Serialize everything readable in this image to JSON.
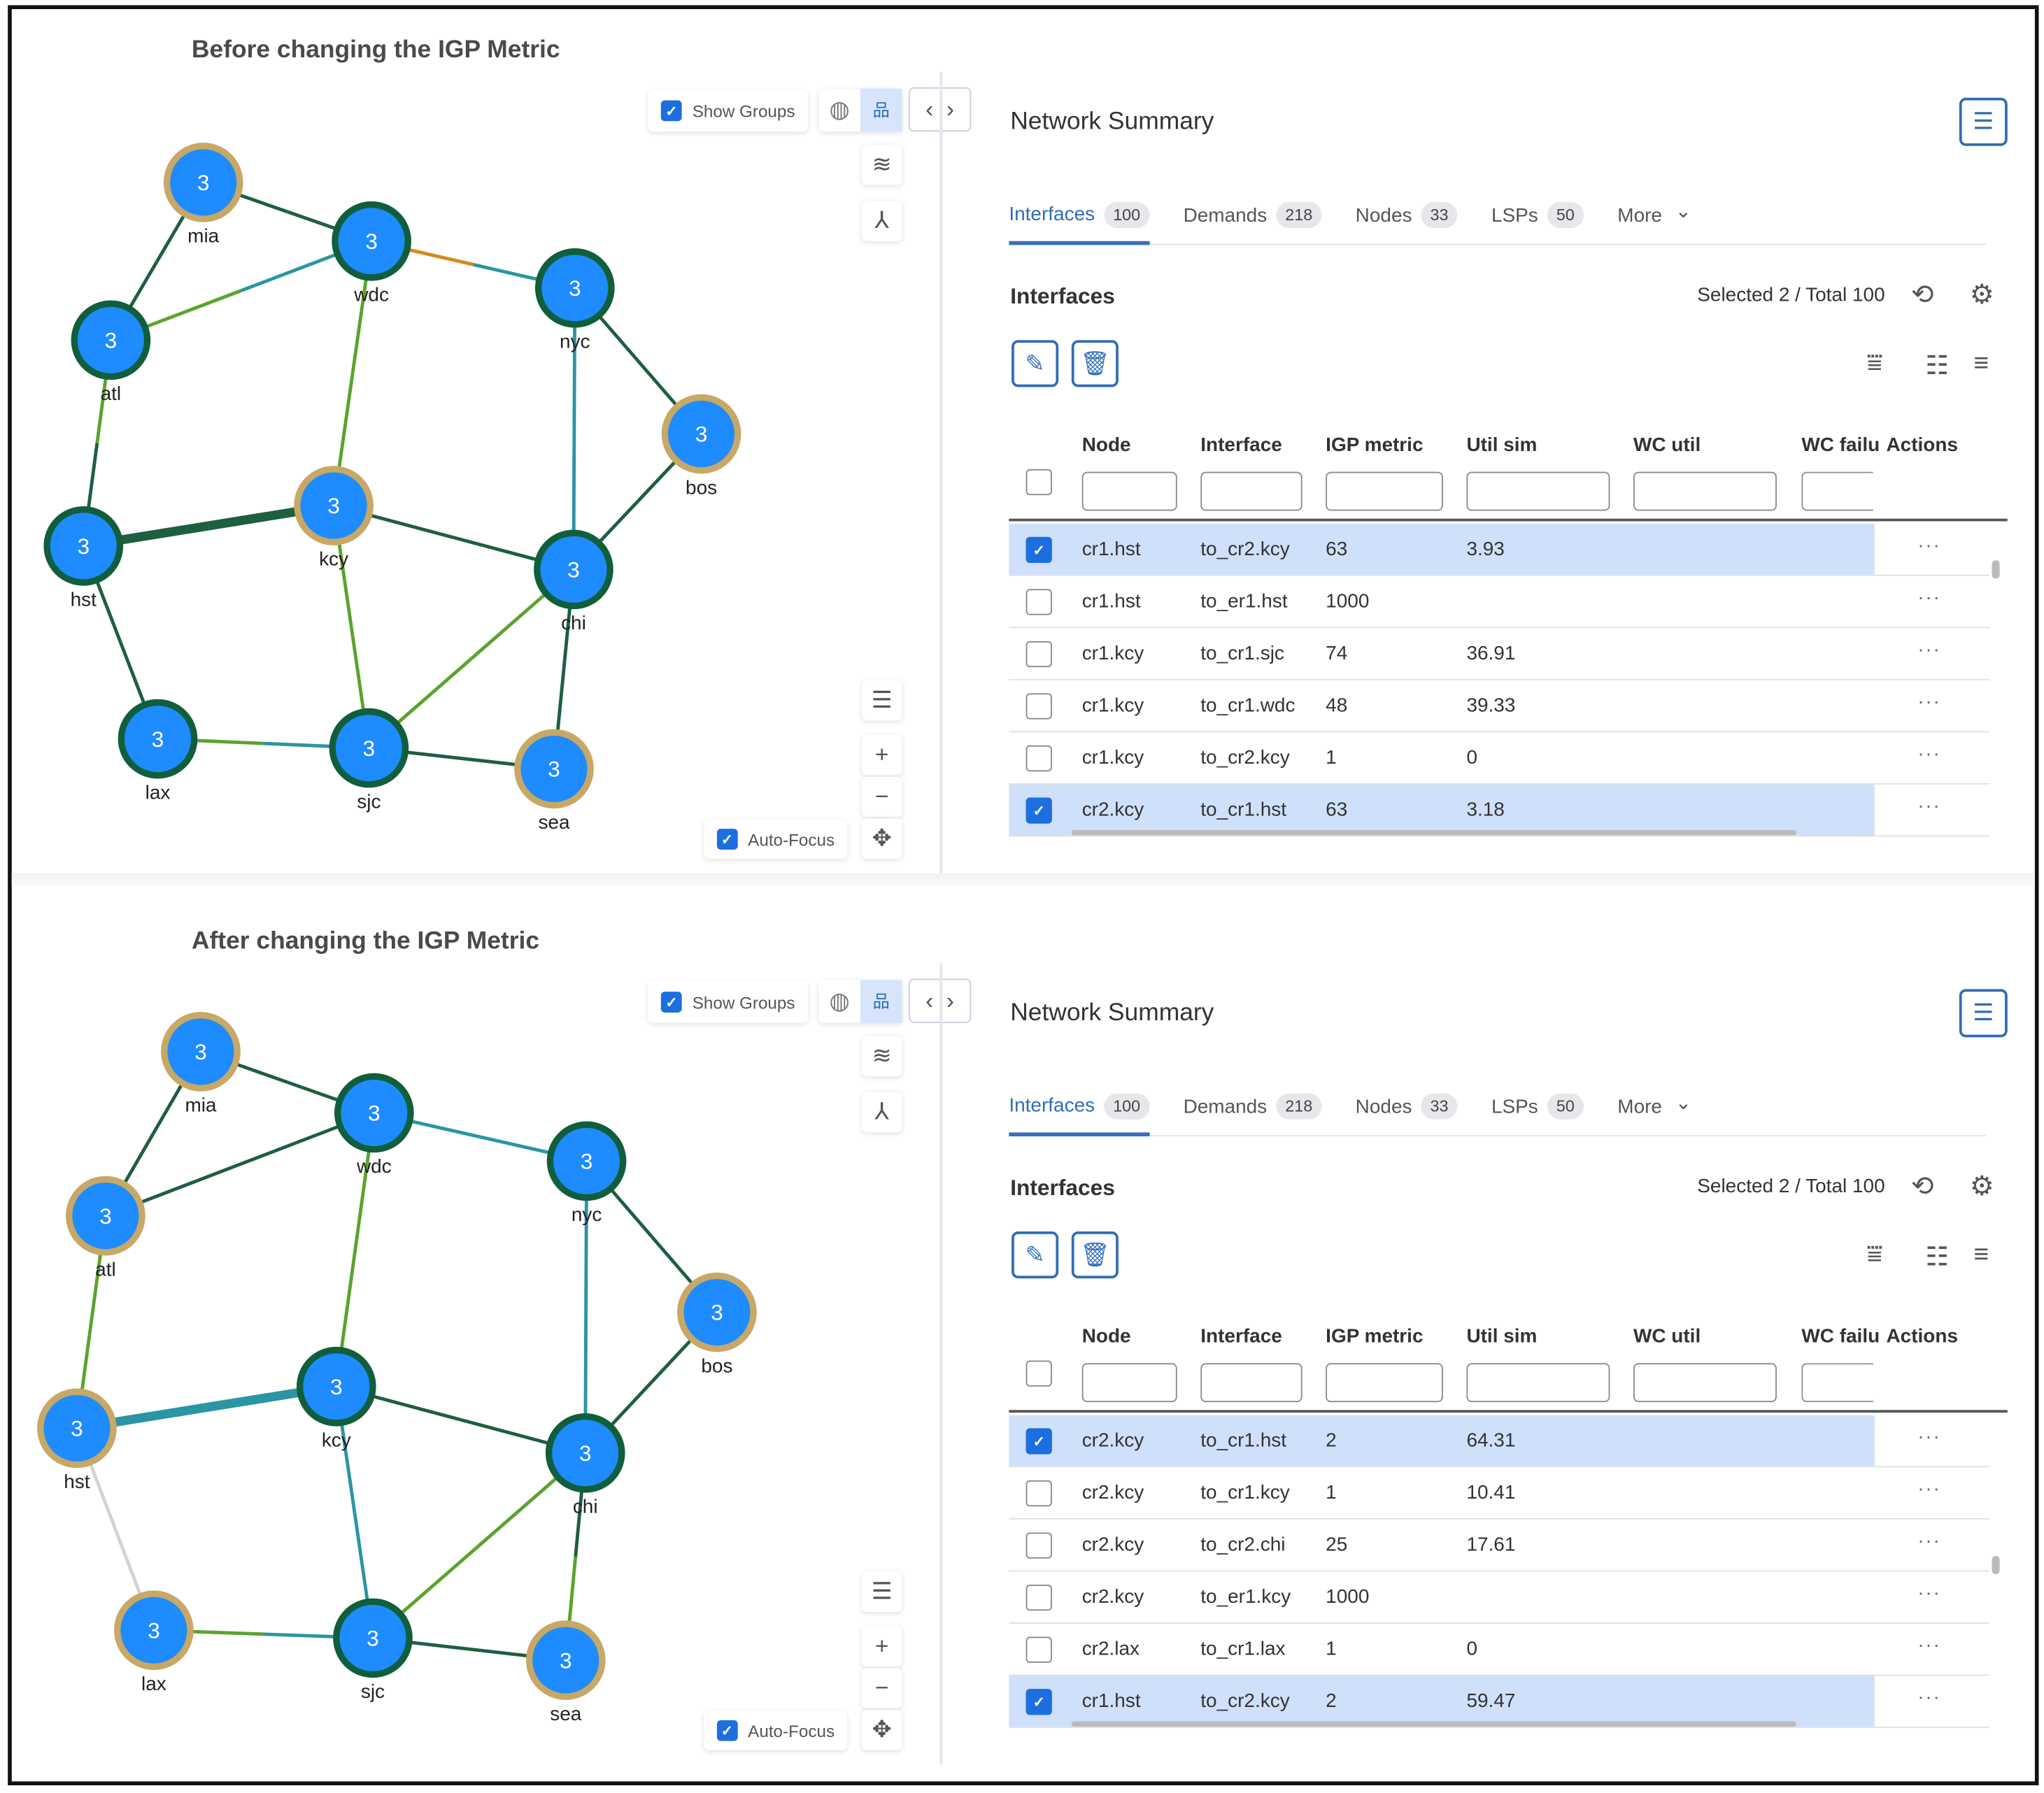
{
  "colors": {
    "node_fill": "#1e8bff",
    "ring_green": "#105e3b",
    "ring_tan": "#c7a866",
    "edge_dark": "#1d5f3f",
    "edge_green": "#5ba32d",
    "edge_teal": "#2b95a3",
    "edge_orange": "#d38a1c",
    "edge_gray": "#d3d3d3",
    "accent": "#2f6db5",
    "selected_row": "#cfe0fb"
  },
  "panels": [
    {
      "title": "Before changing the IGP Metric",
      "controls": {
        "show_groups": "Show Groups",
        "show_groups_checked": true,
        "auto_focus": "Auto-Focus",
        "auto_focus_checked": true
      },
      "graph": {
        "nodes": [
          {
            "id": "mia",
            "label": "mia",
            "count": "3",
            "ring": "tan"
          },
          {
            "id": "wdc",
            "label": "wdc",
            "count": "3",
            "ring": "green"
          },
          {
            "id": "nyc",
            "label": "nyc",
            "count": "3",
            "ring": "green"
          },
          {
            "id": "atl",
            "label": "atl",
            "count": "3",
            "ring": "green"
          },
          {
            "id": "bos",
            "label": "bos",
            "count": "3",
            "ring": "tan"
          },
          {
            "id": "kcy",
            "label": "kcy",
            "count": "3",
            "ring": "tan"
          },
          {
            "id": "hst",
            "label": "hst",
            "count": "3",
            "ring": "green"
          },
          {
            "id": "chi",
            "label": "chi",
            "count": "3",
            "ring": "green"
          },
          {
            "id": "lax",
            "label": "lax",
            "count": "3",
            "ring": "green"
          },
          {
            "id": "sjc",
            "label": "sjc",
            "count": "3",
            "ring": "green"
          },
          {
            "id": "sea",
            "label": "sea",
            "count": "3",
            "ring": "tan"
          }
        ],
        "edges": [
          {
            "a": "mia",
            "b": "wdc",
            "c1": "dark",
            "c2": "dark"
          },
          {
            "a": "mia",
            "b": "atl",
            "c1": "dark",
            "c2": "dark"
          },
          {
            "a": "atl",
            "b": "wdc",
            "c1": "green",
            "c2": "teal"
          },
          {
            "a": "wdc",
            "b": "nyc",
            "c1": "orange",
            "c2": "teal"
          },
          {
            "a": "wdc",
            "b": "kcy",
            "c1": "green",
            "c2": "green"
          },
          {
            "a": "nyc",
            "b": "chi",
            "c1": "teal",
            "c2": "teal"
          },
          {
            "a": "nyc",
            "b": "bos",
            "c1": "dark",
            "c2": "dark"
          },
          {
            "a": "bos",
            "b": "chi",
            "c1": "dark",
            "c2": "dark"
          },
          {
            "a": "kcy",
            "b": "chi",
            "c1": "dark",
            "c2": "dark"
          },
          {
            "a": "hst",
            "b": "kcy",
            "c1": "dark",
            "c2": "dark",
            "heavy": true
          },
          {
            "a": "atl",
            "b": "hst",
            "c1": "green",
            "c2": "dark"
          },
          {
            "a": "hst",
            "b": "lax",
            "c1": "dark",
            "c2": "dark"
          },
          {
            "a": "kcy",
            "b": "sjc",
            "c1": "green",
            "c2": "green"
          },
          {
            "a": "chi",
            "b": "sjc",
            "c1": "green",
            "c2": "green"
          },
          {
            "a": "chi",
            "b": "sea",
            "c1": "dark",
            "c2": "dark"
          },
          {
            "a": "lax",
            "b": "sjc",
            "c1": "green",
            "c2": "teal"
          },
          {
            "a": "sjc",
            "b": "sea",
            "c1": "dark",
            "c2": "dark"
          }
        ]
      },
      "summary": {
        "title": "Network Summary",
        "tabs": [
          {
            "label": "Interfaces",
            "count": "100"
          },
          {
            "label": "Demands",
            "count": "218"
          },
          {
            "label": "Nodes",
            "count": "33"
          },
          {
            "label": "LSPs",
            "count": "50"
          }
        ],
        "more": "More",
        "section_title": "Interfaces",
        "selection": "Selected 2 / Total 100",
        "columns": [
          "Node",
          "Interface",
          "IGP metric",
          "Util sim",
          "WC util",
          "WC failu",
          "Actions"
        ],
        "rows": [
          {
            "selected": true,
            "node": "cr1.hst",
            "interface": "to_cr2.kcy",
            "igp": "63",
            "util": "3.93"
          },
          {
            "selected": false,
            "node": "cr1.hst",
            "interface": "to_er1.hst",
            "igp": "1000",
            "util": ""
          },
          {
            "selected": false,
            "node": "cr1.kcy",
            "interface": "to_cr1.sjc",
            "igp": "74",
            "util": "36.91"
          },
          {
            "selected": false,
            "node": "cr1.kcy",
            "interface": "to_cr1.wdc",
            "igp": "48",
            "util": "39.33"
          },
          {
            "selected": false,
            "node": "cr1.kcy",
            "interface": "to_cr2.kcy",
            "igp": "1",
            "util": "0"
          },
          {
            "selected": true,
            "node": "cr2.kcy",
            "interface": "to_cr1.hst",
            "igp": "63",
            "util": "3.18"
          }
        ],
        "actions_label": "···"
      }
    },
    {
      "title": "After changing the IGP Metric",
      "controls": {
        "show_groups": "Show Groups",
        "show_groups_checked": true,
        "auto_focus": "Auto-Focus",
        "auto_focus_checked": true
      },
      "graph": {
        "nodes": [
          {
            "id": "mia",
            "label": "mia",
            "count": "3",
            "ring": "tan"
          },
          {
            "id": "wdc",
            "label": "wdc",
            "count": "3",
            "ring": "green"
          },
          {
            "id": "nyc",
            "label": "nyc",
            "count": "3",
            "ring": "green"
          },
          {
            "id": "atl",
            "label": "atl",
            "count": "3",
            "ring": "tan"
          },
          {
            "id": "bos",
            "label": "bos",
            "count": "3",
            "ring": "tan"
          },
          {
            "id": "kcy",
            "label": "kcy",
            "count": "3",
            "ring": "green"
          },
          {
            "id": "hst",
            "label": "hst",
            "count": "3",
            "ring": "tan"
          },
          {
            "id": "chi",
            "label": "chi",
            "count": "3",
            "ring": "green"
          },
          {
            "id": "lax",
            "label": "lax",
            "count": "3",
            "ring": "tan"
          },
          {
            "id": "sjc",
            "label": "sjc",
            "count": "3",
            "ring": "green"
          },
          {
            "id": "sea",
            "label": "sea",
            "count": "3",
            "ring": "tan"
          }
        ],
        "edges": [
          {
            "a": "mia",
            "b": "wdc",
            "c1": "dark",
            "c2": "dark"
          },
          {
            "a": "mia",
            "b": "atl",
            "c1": "dark",
            "c2": "dark"
          },
          {
            "a": "atl",
            "b": "wdc",
            "c1": "dark",
            "c2": "dark"
          },
          {
            "a": "wdc",
            "b": "nyc",
            "c1": "teal",
            "c2": "teal"
          },
          {
            "a": "wdc",
            "b": "kcy",
            "c1": "green",
            "c2": "green"
          },
          {
            "a": "nyc",
            "b": "chi",
            "c1": "teal",
            "c2": "teal"
          },
          {
            "a": "nyc",
            "b": "bos",
            "c1": "dark",
            "c2": "dark"
          },
          {
            "a": "bos",
            "b": "chi",
            "c1": "dark",
            "c2": "dark"
          },
          {
            "a": "kcy",
            "b": "chi",
            "c1": "dark",
            "c2": "dark"
          },
          {
            "a": "hst",
            "b": "kcy",
            "c1": "teal",
            "c2": "teal",
            "heavy": true
          },
          {
            "a": "atl",
            "b": "hst",
            "c1": "green",
            "c2": "green"
          },
          {
            "a": "hst",
            "b": "lax",
            "c1": "gray",
            "c2": "gray"
          },
          {
            "a": "kcy",
            "b": "sjc",
            "c1": "teal",
            "c2": "teal"
          },
          {
            "a": "chi",
            "b": "sjc",
            "c1": "green",
            "c2": "green"
          },
          {
            "a": "chi",
            "b": "sea",
            "c1": "dark",
            "c2": "green"
          },
          {
            "a": "lax",
            "b": "sjc",
            "c1": "green",
            "c2": "teal"
          },
          {
            "a": "sjc",
            "b": "sea",
            "c1": "dark",
            "c2": "dark"
          }
        ]
      },
      "summary": {
        "title": "Network Summary",
        "tabs": [
          {
            "label": "Interfaces",
            "count": "100"
          },
          {
            "label": "Demands",
            "count": "218"
          },
          {
            "label": "Nodes",
            "count": "33"
          },
          {
            "label": "LSPs",
            "count": "50"
          }
        ],
        "more": "More",
        "section_title": "Interfaces",
        "selection": "Selected 2 / Total 100",
        "columns": [
          "Node",
          "Interface",
          "IGP metric",
          "Util sim",
          "WC util",
          "WC failu",
          "Actions"
        ],
        "rows": [
          {
            "selected": true,
            "node": "cr2.kcy",
            "interface": "to_cr1.hst",
            "igp": "2",
            "util": "64.31"
          },
          {
            "selected": false,
            "node": "cr2.kcy",
            "interface": "to_cr1.kcy",
            "igp": "1",
            "util": "10.41"
          },
          {
            "selected": false,
            "node": "cr2.kcy",
            "interface": "to_cr2.chi",
            "igp": "25",
            "util": "17.61"
          },
          {
            "selected": false,
            "node": "cr2.kcy",
            "interface": "to_er1.kcy",
            "igp": "1000",
            "util": ""
          },
          {
            "selected": false,
            "node": "cr2.lax",
            "interface": "to_cr1.lax",
            "igp": "1",
            "util": "0"
          },
          {
            "selected": true,
            "node": "cr1.hst",
            "interface": "to_cr2.kcy",
            "igp": "2",
            "util": "59.47"
          }
        ],
        "actions_label": "···"
      }
    }
  ]
}
